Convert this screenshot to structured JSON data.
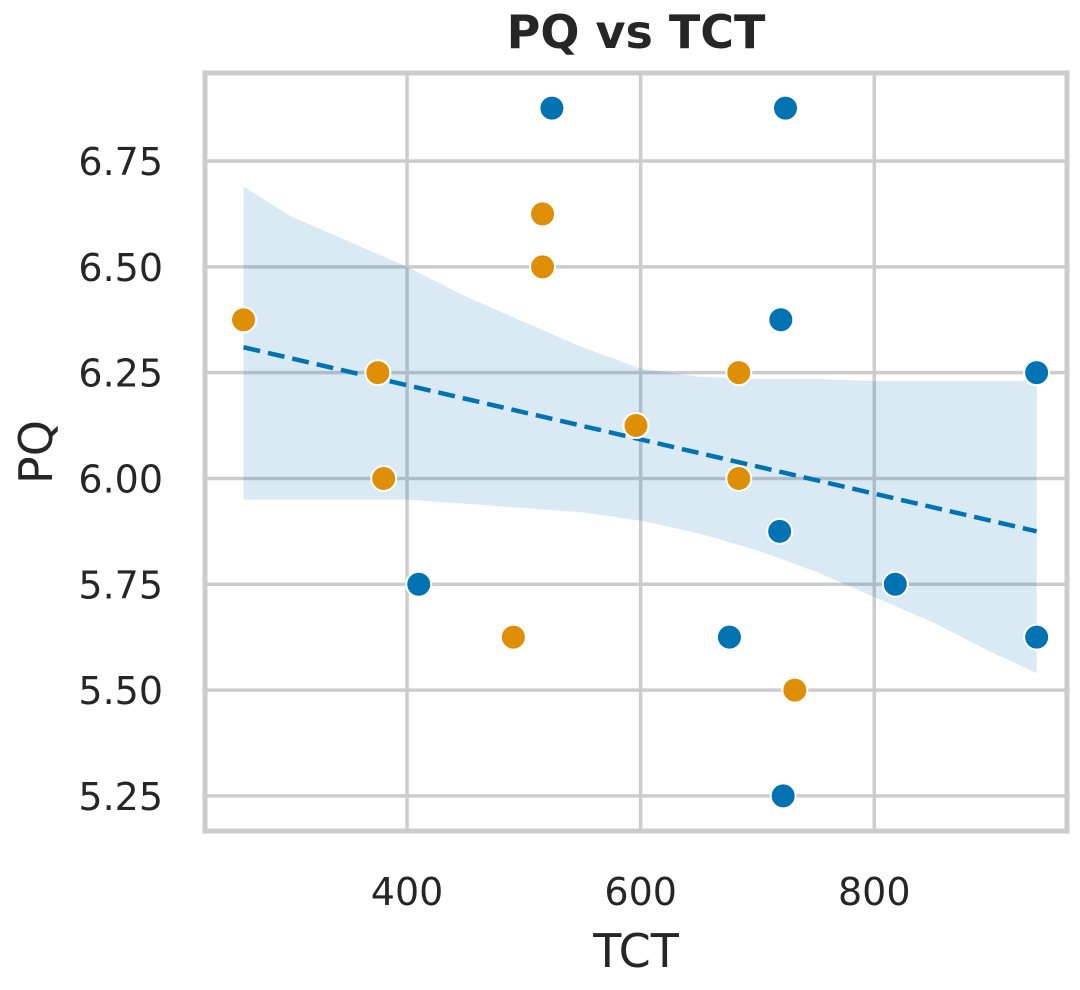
{
  "chart_data": {
    "type": "scatter",
    "title": "PQ vs TCT",
    "xlabel": "TCT",
    "ylabel": "PQ",
    "xlim": [
      227,
      965
    ],
    "ylim": [
      5.167,
      6.958
    ],
    "x_ticks": [
      400,
      600,
      800
    ],
    "y_ticks": [
      5.25,
      5.5,
      5.75,
      6.0,
      6.25,
      6.5,
      6.75
    ],
    "x_tick_labels": [
      "400",
      "600",
      "800"
    ],
    "y_tick_labels": [
      "5.25",
      "5.50",
      "5.75",
      "6.00",
      "6.25",
      "6.50",
      "6.75"
    ],
    "grid": true,
    "legend": "none",
    "series": [
      {
        "color": "#0173b2",
        "points": [
          {
            "x": 524,
            "y": 6.875
          },
          {
            "x": 724,
            "y": 6.875
          },
          {
            "x": 720,
            "y": 6.375
          },
          {
            "x": 939,
            "y": 6.25
          },
          {
            "x": 719,
            "y": 5.875
          },
          {
            "x": 410,
            "y": 5.75
          },
          {
            "x": 818,
            "y": 5.75
          },
          {
            "x": 676,
            "y": 5.625
          },
          {
            "x": 939,
            "y": 5.625
          },
          {
            "x": 722,
            "y": 5.25
          }
        ]
      },
      {
        "color": "#de8f05",
        "points": [
          {
            "x": 516,
            "y": 6.625
          },
          {
            "x": 516,
            "y": 6.5
          },
          {
            "x": 260,
            "y": 6.375
          },
          {
            "x": 375,
            "y": 6.25
          },
          {
            "x": 684,
            "y": 6.25
          },
          {
            "x": 596,
            "y": 6.125
          },
          {
            "x": 380,
            "y": 6.0
          },
          {
            "x": 684,
            "y": 6.0
          },
          {
            "x": 491,
            "y": 5.625
          },
          {
            "x": 732,
            "y": 5.5
          }
        ]
      }
    ],
    "regression": {
      "color": "#0173b2",
      "style": "dashed",
      "x": [
        260,
        939
      ],
      "y": [
        6.31,
        5.875
      ]
    },
    "confidence_band": {
      "color": "#0173b2",
      "opacity": 0.15,
      "x": [
        260,
        300,
        350,
        400,
        450,
        500,
        550,
        600,
        650,
        700,
        750,
        800,
        850,
        900,
        939
      ],
      "upper": [
        6.69,
        6.62,
        6.56,
        6.5,
        6.43,
        6.37,
        6.31,
        6.26,
        6.24,
        6.235,
        6.235,
        6.23,
        6.23,
        6.23,
        6.23
      ],
      "lower": [
        5.95,
        5.95,
        5.95,
        5.95,
        5.94,
        5.93,
        5.92,
        5.9,
        5.87,
        5.83,
        5.78,
        5.72,
        5.66,
        5.59,
        5.54
      ]
    }
  }
}
